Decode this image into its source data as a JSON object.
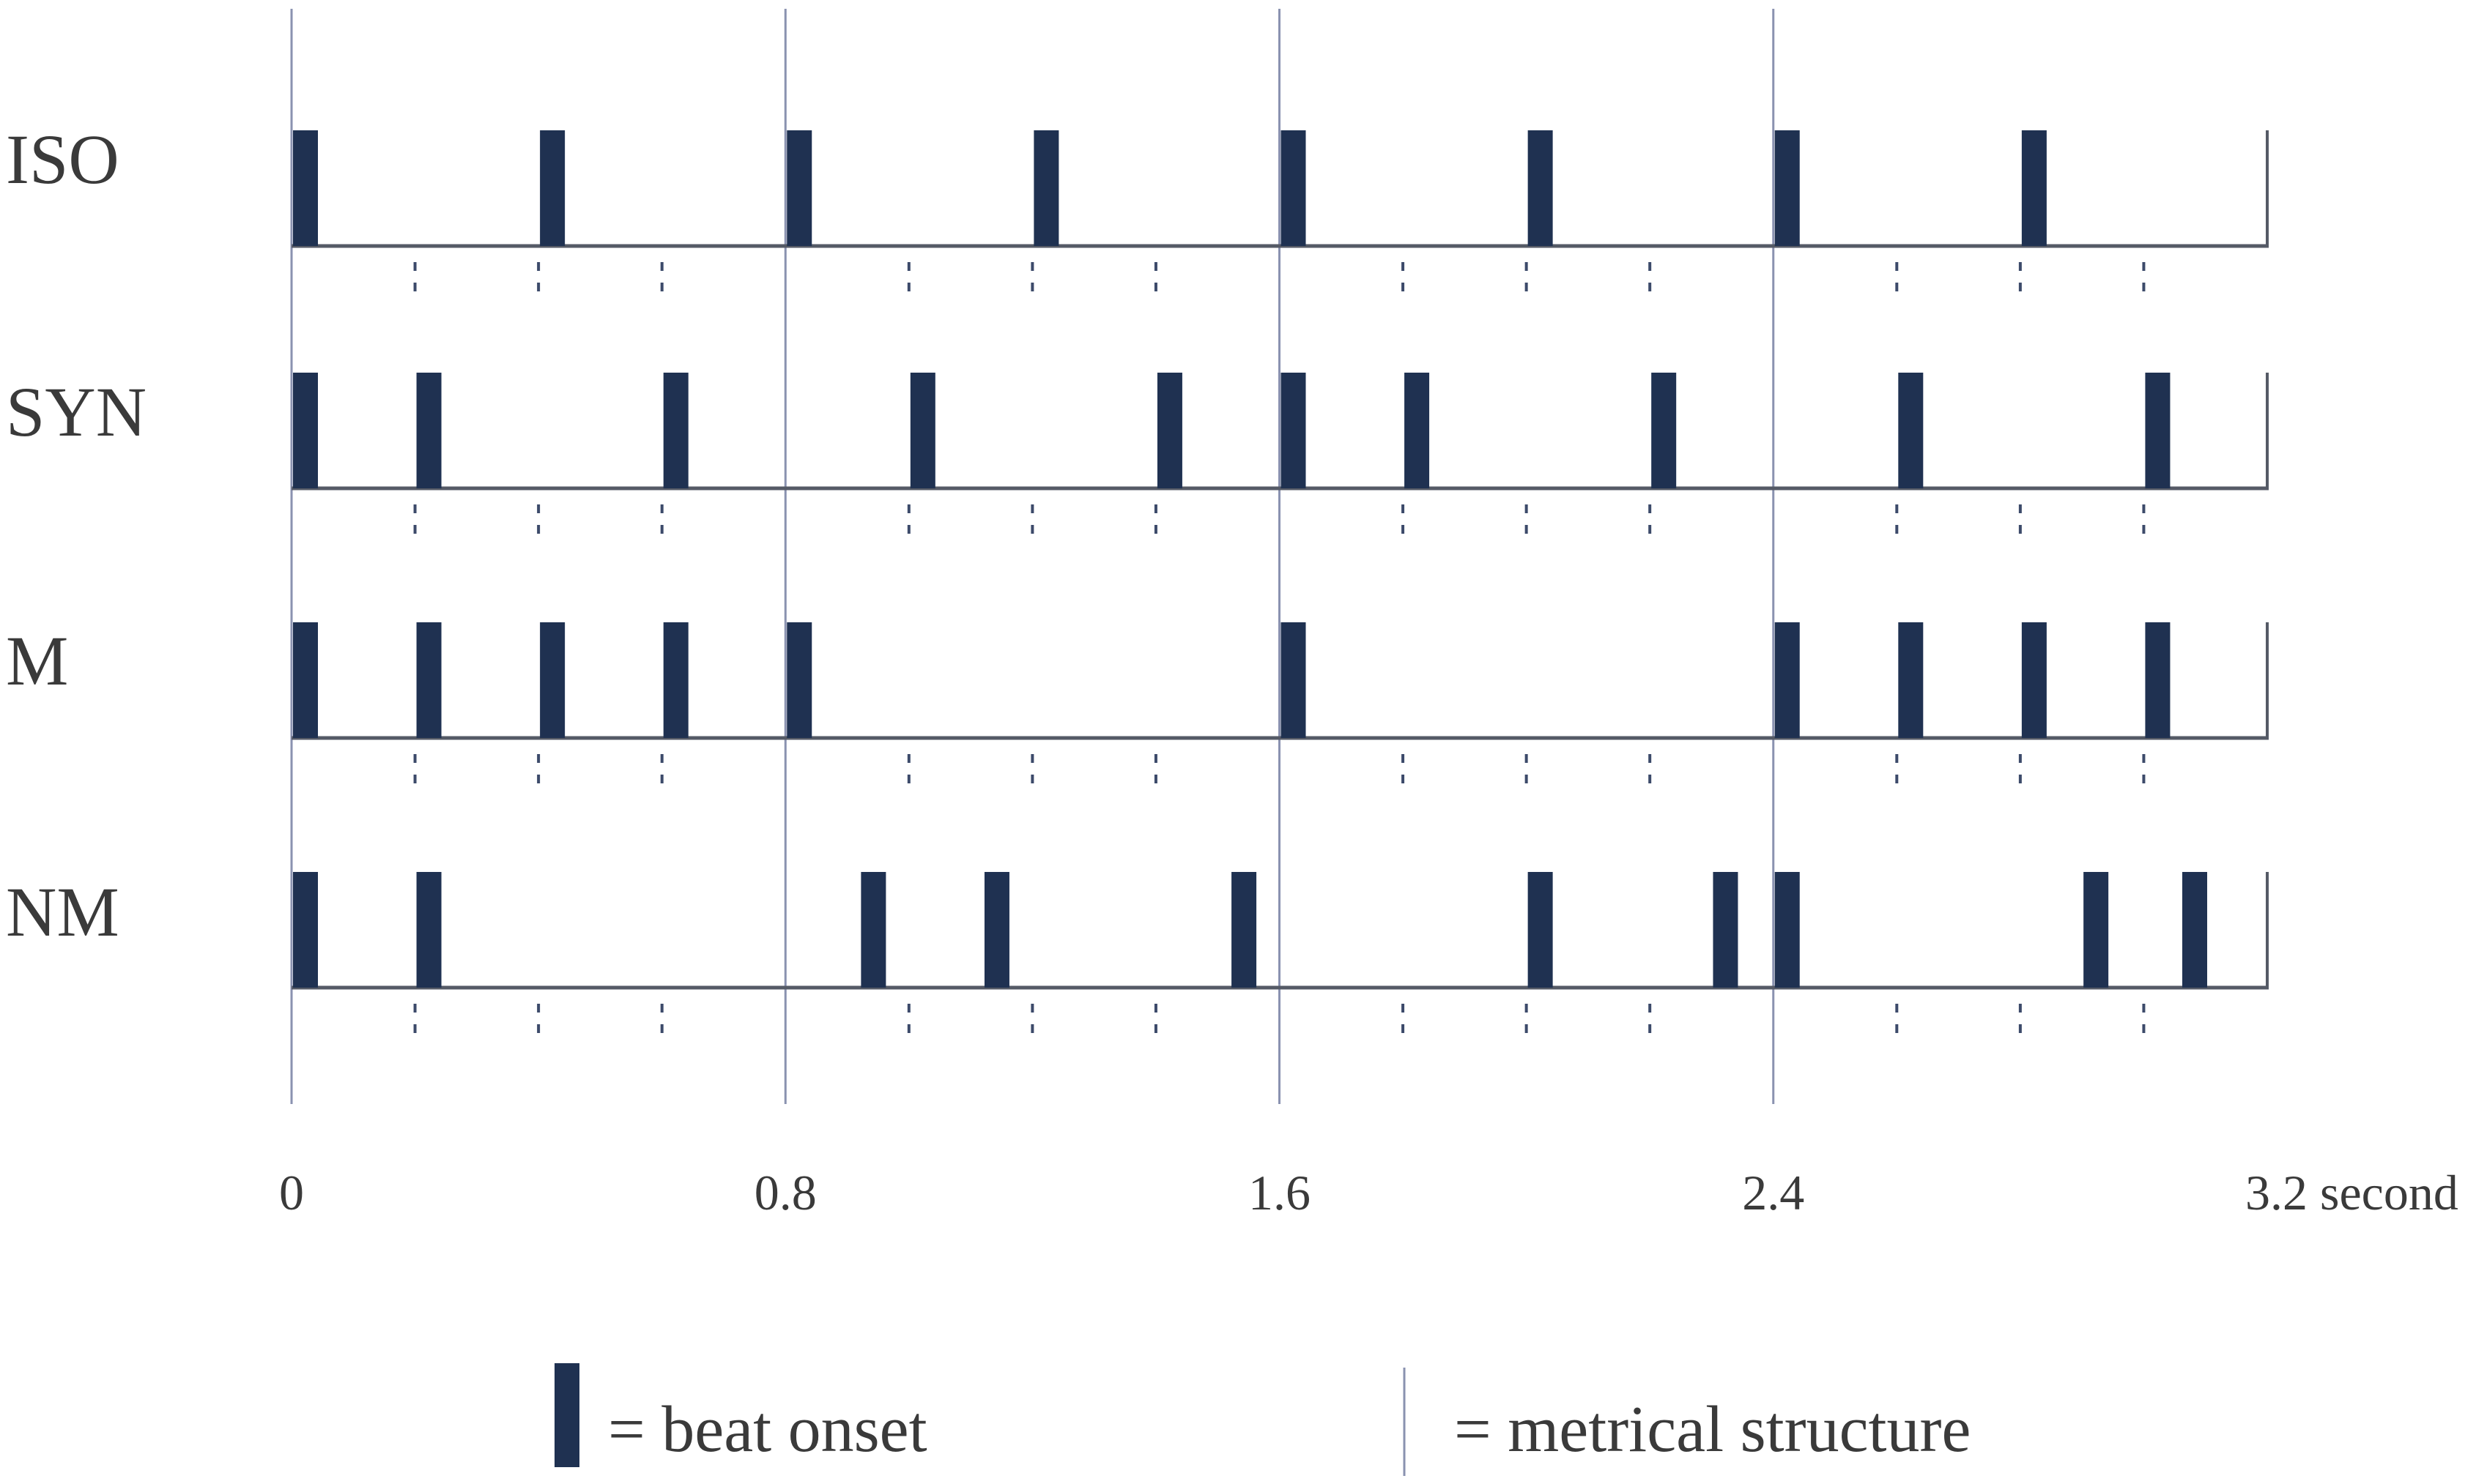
{
  "time_axis": {
    "range": [
      0,
      3.2
    ],
    "ticks": [
      {
        "value": 0,
        "label": "0"
      },
      {
        "value": 0.8,
        "label": "0.8"
      },
      {
        "value": 1.6,
        "label": "1.6"
      },
      {
        "value": 2.4,
        "label": "2.4"
      },
      {
        "value": 3.2,
        "label": "3.2 second"
      }
    ],
    "measure_lines": [
      0,
      0.8,
      1.6,
      2.4
    ],
    "subdivision_step": 0.2
  },
  "rows": [
    {
      "label": "ISO",
      "onsets": [
        0,
        0.4,
        0.8,
        1.2,
        1.6,
        2.0,
        2.4,
        2.8
      ]
    },
    {
      "label": "SYN",
      "onsets": [
        0,
        0.2,
        0.6,
        1.0,
        1.4,
        1.6,
        1.8,
        2.2,
        2.6,
        3.0
      ]
    },
    {
      "label": "M",
      "onsets": [
        0,
        0.2,
        0.4,
        0.6,
        0.8,
        1.6,
        2.4,
        2.6,
        2.8,
        3.0
      ]
    },
    {
      "label": "NM",
      "onsets": [
        0,
        0.2,
        0.92,
        1.12,
        1.52,
        2.0,
        2.3,
        2.4,
        2.9,
        3.06
      ]
    }
  ],
  "legend": {
    "beat_onset": "= beat onset",
    "metrical_structure": "= metrical structure"
  },
  "colors": {
    "bar": "#1f3151",
    "line": "#555a66",
    "measure": "#8a92b0",
    "tick": "#3c4a6a"
  }
}
